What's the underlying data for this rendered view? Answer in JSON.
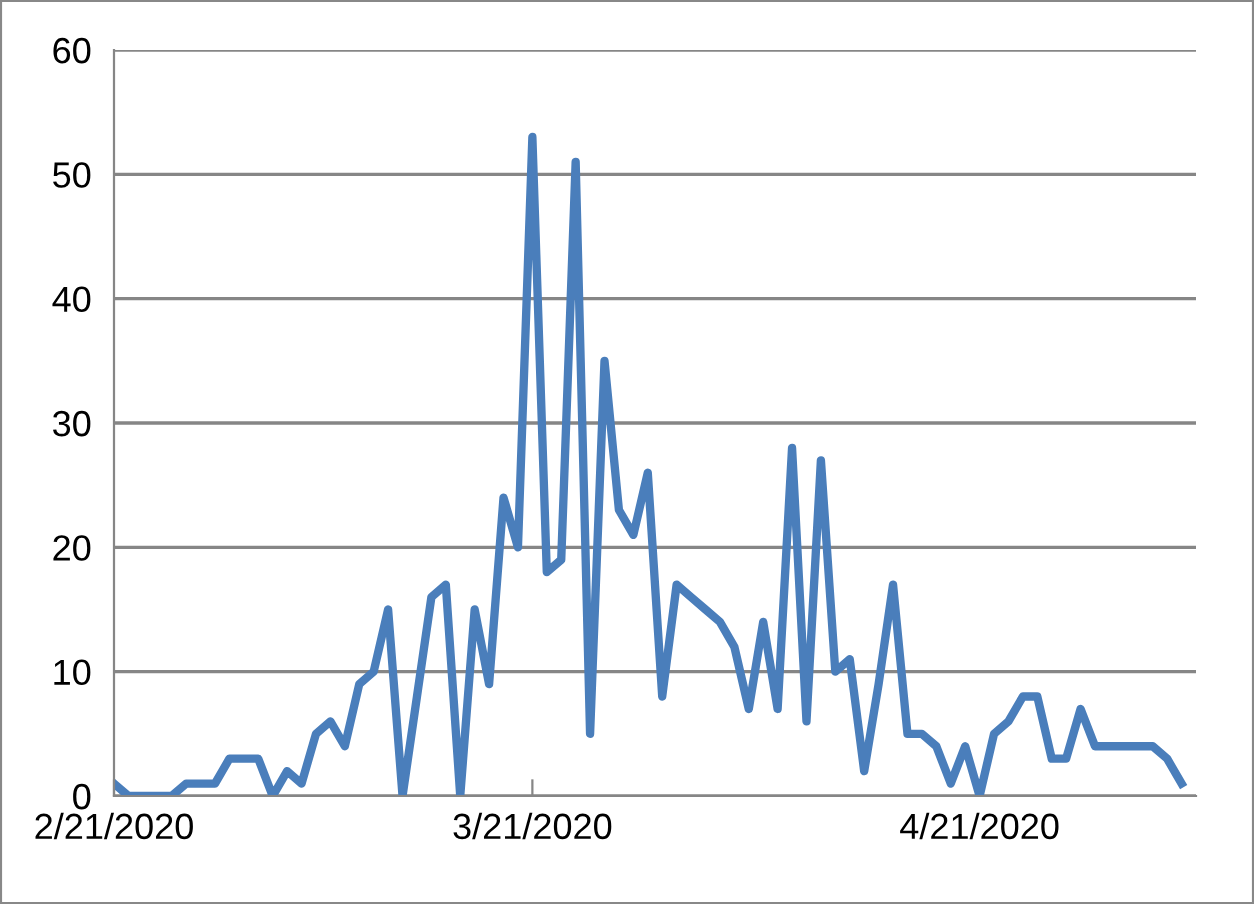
{
  "chart_data": {
    "type": "line",
    "x": [
      "2020-02-21",
      "2020-02-22",
      "2020-02-23",
      "2020-02-24",
      "2020-02-25",
      "2020-02-26",
      "2020-02-27",
      "2020-02-28",
      "2020-02-29",
      "2020-03-01",
      "2020-03-02",
      "2020-03-03",
      "2020-03-04",
      "2020-03-05",
      "2020-03-06",
      "2020-03-07",
      "2020-03-08",
      "2020-03-09",
      "2020-03-10",
      "2020-03-11",
      "2020-03-12",
      "2020-03-13",
      "2020-03-14",
      "2020-03-15",
      "2020-03-16",
      "2020-03-17",
      "2020-03-18",
      "2020-03-19",
      "2020-03-20",
      "2020-03-21",
      "2020-03-22",
      "2020-03-23",
      "2020-03-24",
      "2020-03-25",
      "2020-03-26",
      "2020-03-27",
      "2020-03-28",
      "2020-03-29",
      "2020-03-30",
      "2020-03-31",
      "2020-04-01",
      "2020-04-02",
      "2020-04-03",
      "2020-04-04",
      "2020-04-05",
      "2020-04-06",
      "2020-04-07",
      "2020-04-08",
      "2020-04-09",
      "2020-04-10",
      "2020-04-11",
      "2020-04-12",
      "2020-04-13",
      "2020-04-14",
      "2020-04-15",
      "2020-04-16",
      "2020-04-17",
      "2020-04-18",
      "2020-04-19",
      "2020-04-20",
      "2020-04-21",
      "2020-04-22",
      "2020-04-23",
      "2020-04-24",
      "2020-04-25",
      "2020-04-26",
      "2020-04-27",
      "2020-04-28",
      "2020-04-29",
      "2020-04-30",
      "2020-05-01",
      "2020-05-02",
      "2020-05-03",
      "2020-05-04",
      "2020-05-05"
    ],
    "series": [
      {
        "color": "#4a7ebb",
        "values": [
          1,
          0,
          0,
          0,
          0,
          1,
          1,
          1,
          3,
          3,
          3,
          0,
          2,
          1,
          5,
          6,
          4,
          9,
          10,
          15,
          0,
          8,
          16,
          17,
          0,
          15,
          9,
          24,
          20,
          53,
          18,
          19,
          51,
          5,
          35,
          23,
          21,
          26,
          8,
          17,
          16,
          15,
          14,
          12,
          7,
          14,
          7,
          28,
          6,
          27,
          10,
          11,
          2,
          9,
          17,
          5,
          5,
          4,
          1,
          4,
          0,
          5,
          6,
          8,
          8,
          3,
          3,
          7,
          4,
          4,
          4,
          4,
          4,
          3,
          1
        ]
      }
    ],
    "xlim": [
      "2020-02-21",
      "2020-05-06"
    ],
    "xticks": [
      {
        "value": "2020-02-21",
        "label": "2/21/2020"
      },
      {
        "value": "2020-03-21",
        "label": "3/21/2020"
      },
      {
        "value": "2020-04-21",
        "label": "4/21/2020"
      }
    ],
    "ylim": [
      0,
      60
    ],
    "yticks": [
      0,
      10,
      20,
      30,
      40,
      50,
      60
    ],
    "grid": "y",
    "line_style": "solid",
    "marker": "none"
  }
}
